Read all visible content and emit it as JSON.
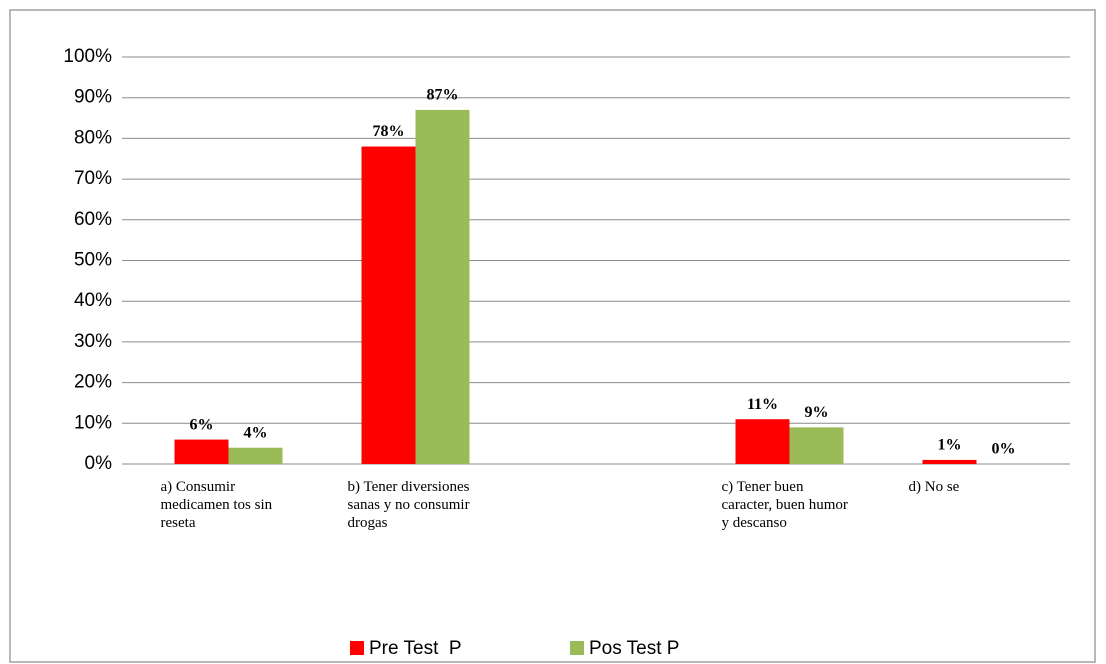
{
  "chart_data": {
    "type": "bar",
    "categories": [
      "a) Consumir medicamen tos sin reseta",
      "b) Tener diversiones sanas y no consumir drogas",
      null,
      "c) Tener buen caracter, buen humor y descanso",
      "d) No se"
    ],
    "series": [
      {
        "name": "Pre Test  P",
        "color": "#ff0000",
        "values": [
          6,
          78,
          null,
          11,
          1
        ],
        "value_labels": [
          "6%",
          "78%",
          null,
          "11%",
          "1%"
        ]
      },
      {
        "name": "Pos Test P",
        "color": "#9bbb59",
        "values": [
          4,
          87,
          null,
          9,
          0
        ],
        "value_labels": [
          "4%",
          "87%",
          null,
          "9%",
          "0%"
        ]
      }
    ],
    "ylim": [
      0,
      100
    ],
    "yticks": [
      {
        "value": 0,
        "label": "0%"
      },
      {
        "value": 10,
        "label": "10%"
      },
      {
        "value": 20,
        "label": "20%"
      },
      {
        "value": 30,
        "label": "30%"
      },
      {
        "value": 40,
        "label": "40%"
      },
      {
        "value": 50,
        "label": "50%"
      },
      {
        "value": 60,
        "label": "60%"
      },
      {
        "value": 70,
        "label": "70%"
      },
      {
        "value": 80,
        "label": "80%"
      },
      {
        "value": 90,
        "label": "90%"
      },
      {
        "value": 100,
        "label": "100%"
      }
    ],
    "grid": true,
    "legend": "bottom"
  }
}
